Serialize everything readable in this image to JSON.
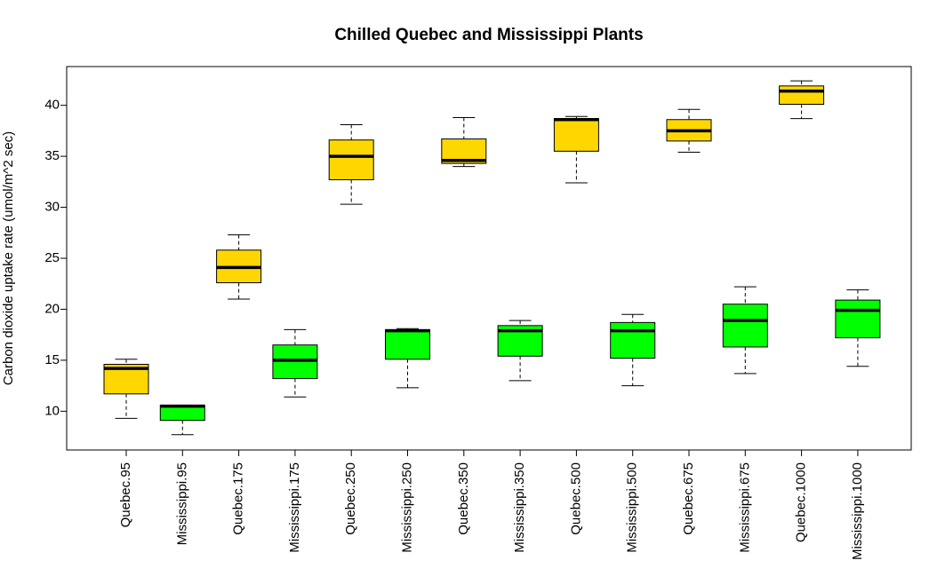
{
  "chart_data": {
    "type": "boxplot",
    "title": "Chilled Quebec and Mississippi Plants",
    "xlabel": "",
    "ylabel": "Carbon dioxide uptake rate (umol/m^2 sec)",
    "ylim": [
      6.2,
      43.8
    ],
    "yticks": [
      "10",
      "15",
      "20",
      "25",
      "30",
      "35",
      "40"
    ],
    "grid": false,
    "colors": {
      "quebec": "#FFD700",
      "mississippi": "#00FF00",
      "line": "#000000"
    },
    "boxes": [
      {
        "label": "Quebec.95",
        "color": "#FFD700",
        "min": 9.3,
        "q1": 11.7,
        "median": 14.2,
        "q3": 14.6,
        "max": 15.1
      },
      {
        "label": "Mississippi.95",
        "color": "#00FF00",
        "min": 7.7,
        "q1": 9.1,
        "median": 10.5,
        "q3": 10.6,
        "max": 10.6
      },
      {
        "label": "Quebec.175",
        "color": "#FFD700",
        "min": 21.0,
        "q1": 22.6,
        "median": 24.1,
        "q3": 25.8,
        "max": 27.3
      },
      {
        "label": "Mississippi.175",
        "color": "#00FF00",
        "min": 11.4,
        "q1": 13.2,
        "median": 15.0,
        "q3": 16.5,
        "max": 18.0
      },
      {
        "label": "Quebec.250",
        "color": "#FFD700",
        "min": 30.3,
        "q1": 32.7,
        "median": 35.0,
        "q3": 36.6,
        "max": 38.1
      },
      {
        "label": "Mississippi.250",
        "color": "#00FF00",
        "min": 12.3,
        "q1": 15.1,
        "median": 17.9,
        "q3": 18.0,
        "max": 18.1
      },
      {
        "label": "Quebec.350",
        "color": "#FFD700",
        "min": 34.0,
        "q1": 34.3,
        "median": 34.6,
        "q3": 36.7,
        "max": 38.8
      },
      {
        "label": "Mississippi.350",
        "color": "#00FF00",
        "min": 13.0,
        "q1": 15.4,
        "median": 17.9,
        "q3": 18.4,
        "max": 18.9
      },
      {
        "label": "Quebec.500",
        "color": "#FFD700",
        "min": 32.4,
        "q1": 35.5,
        "median": 38.6,
        "q3": 38.7,
        "max": 38.9
      },
      {
        "label": "Mississippi.500",
        "color": "#00FF00",
        "min": 12.5,
        "q1": 15.2,
        "median": 17.9,
        "q3": 18.7,
        "max": 19.5
      },
      {
        "label": "Quebec.675",
        "color": "#FFD700",
        "min": 35.4,
        "q1": 36.5,
        "median": 37.5,
        "q3": 38.6,
        "max": 39.6
      },
      {
        "label": "Mississippi.675",
        "color": "#00FF00",
        "min": 13.7,
        "q1": 16.3,
        "median": 18.9,
        "q3": 20.5,
        "max": 22.2
      },
      {
        "label": "Quebec.1000",
        "color": "#FFD700",
        "min": 38.7,
        "q1": 40.1,
        "median": 41.4,
        "q3": 41.9,
        "max": 42.4
      },
      {
        "label": "Mississippi.1000",
        "color": "#00FF00",
        "min": 14.4,
        "q1": 17.2,
        "median": 19.9,
        "q3": 20.9,
        "max": 21.9
      }
    ]
  }
}
